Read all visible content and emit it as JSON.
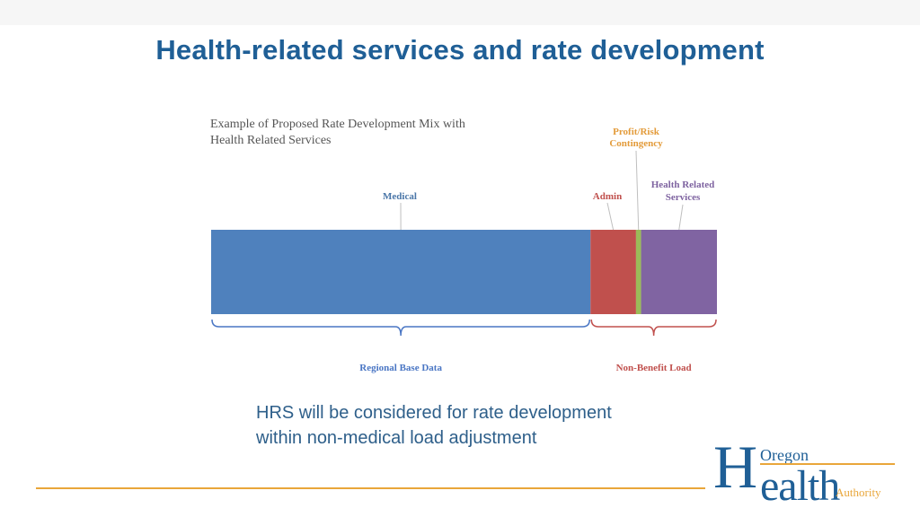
{
  "slide": {
    "title": "Health-related services and rate development",
    "body_line1": "HRS will be considered for rate development",
    "body_line2": "within non-medical load adjustment"
  },
  "logo": {
    "alt": "Oregon Health Authority",
    "oregon": "Oregon",
    "health": "Health",
    "authority": "Authority"
  },
  "colors": {
    "title": "#1f5f96",
    "accent_line": "#e9a63a"
  },
  "chart_data": {
    "type": "bar",
    "orientation": "horizontal-stacked",
    "title_line1": "Example of Proposed Rate Development Mix with",
    "title_line2": "Health Related Services",
    "xlim": [
      0,
      100
    ],
    "segments": [
      {
        "name": "Medical",
        "value": 75.0,
        "color": "#4f81bd",
        "label_color": "#4a76a8"
      },
      {
        "name": "Admin",
        "value": 9.0,
        "color": "#c0504d",
        "label_color": "#c0504d"
      },
      {
        "name": "Profit/Risk Contingency",
        "value": 1.0,
        "color": "#9bbb59",
        "label_color": "#e39b3a"
      },
      {
        "name": "Health Related Services",
        "value": 15.0,
        "color": "#8064a2",
        "label_color": "#7e63a0"
      }
    ],
    "groups": [
      {
        "name": "Regional Base Data",
        "covers": [
          "Medical"
        ],
        "color": "#4a76c4"
      },
      {
        "name": "Non-Benefit Load",
        "covers": [
          "Admin",
          "Profit/Risk Contingency",
          "Health Related Services"
        ],
        "color": "#c0504d"
      }
    ]
  }
}
